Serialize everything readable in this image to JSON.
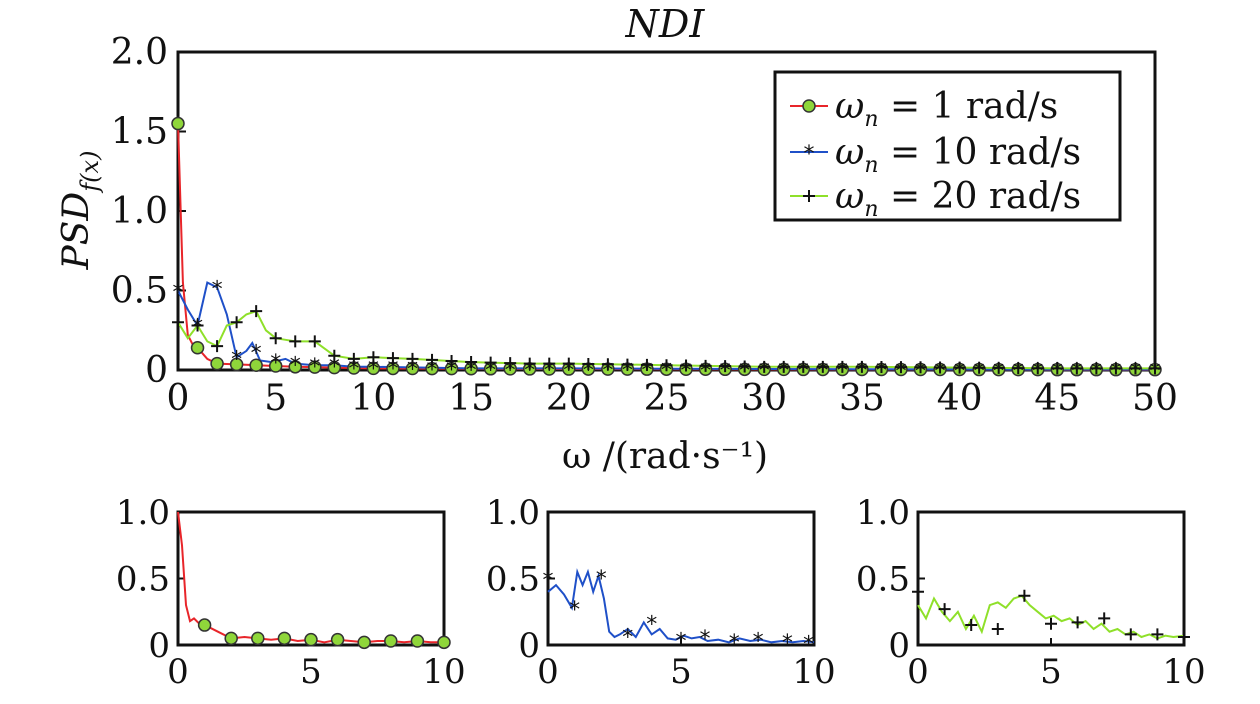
{
  "colors": {
    "series1": "#e8252a",
    "series1_marker": "#8fd63a",
    "series2": "#1f50c8",
    "series3": "#8fe02a",
    "marker_dark": "#111111"
  },
  "chart_data": [
    {
      "type": "line",
      "title": "NDI",
      "xlabel": "ω /(rad·s⁻¹)",
      "ylabel_main": "PSD",
      "ylabel_sub": "f(x)",
      "xlim": [
        0,
        50
      ],
      "ylim": [
        0,
        2.0
      ],
      "xticks": [
        "0",
        "5",
        "10",
        "15",
        "20",
        "25",
        "30",
        "35",
        "40",
        "45",
        "50"
      ],
      "yticks": [
        "0",
        "0.5",
        "1.0",
        "1.5",
        "2.0"
      ],
      "legend_position": "top-right",
      "series": [
        {
          "name_sym": "ω",
          "name_sub": "n",
          "name_rest": " = 1 rad/s",
          "marker": "circle",
          "x": [
            0,
            0.25,
            0.5,
            0.75,
            1,
            1.5,
            2,
            3,
            4,
            5,
            6,
            7,
            8,
            10,
            15,
            20,
            25,
            30,
            35,
            40,
            45,
            50
          ],
          "y": [
            1.55,
            0.55,
            0.22,
            0.16,
            0.14,
            0.07,
            0.04,
            0.035,
            0.03,
            0.025,
            0.02,
            0.018,
            0.015,
            0.01,
            0.008,
            0.006,
            0.005,
            0.004,
            0.003,
            0.003,
            0.002,
            0.002
          ]
        },
        {
          "name_sym": "ω",
          "name_sub": "n",
          "name_rest": " = 10 rad/s",
          "marker": "asterisk",
          "x": [
            0,
            0.5,
            1,
            1.5,
            2,
            2.5,
            3,
            3.5,
            3.8,
            4.2,
            4.8,
            5.5,
            6,
            7,
            8,
            9,
            10,
            15,
            20,
            25,
            30,
            35,
            40,
            45,
            50
          ],
          "y": [
            0.5,
            0.38,
            0.28,
            0.55,
            0.52,
            0.35,
            0.08,
            0.12,
            0.17,
            0.06,
            0.05,
            0.07,
            0.04,
            0.03,
            0.03,
            0.02,
            0.02,
            0.01,
            0.01,
            0.008,
            0.006,
            0.005,
            0.004,
            0.003,
            0.003
          ]
        },
        {
          "name_sym": "ω",
          "name_sub": "n",
          "name_rest": " = 20 rad/s",
          "marker": "plus",
          "x": [
            0,
            0.5,
            1,
            1.5,
            2,
            2.5,
            3,
            3.5,
            4,
            4.5,
            5,
            5.5,
            6,
            7,
            8,
            9,
            10,
            12,
            15,
            18,
            20,
            25,
            30,
            35,
            40,
            45,
            50
          ],
          "y": [
            0.3,
            0.2,
            0.28,
            0.18,
            0.15,
            0.28,
            0.3,
            0.35,
            0.37,
            0.25,
            0.2,
            0.19,
            0.18,
            0.18,
            0.09,
            0.07,
            0.08,
            0.07,
            0.05,
            0.04,
            0.04,
            0.03,
            0.02,
            0.02,
            0.015,
            0.01,
            0.01
          ]
        }
      ]
    },
    {
      "type": "line",
      "xlim": [
        0,
        10
      ],
      "ylim": [
        0,
        1.0
      ],
      "xticks": [
        "0",
        "5",
        "10"
      ],
      "yticks": [
        "0",
        "0.5",
        "1.0"
      ],
      "series": [
        {
          "marker": "circle",
          "x": [
            0,
            0.15,
            0.3,
            0.45,
            0.6,
            0.8,
            1,
            1.5,
            2,
            2.5,
            3,
            3.5,
            4,
            4.5,
            5,
            5.5,
            6,
            6.5,
            7,
            7.5,
            8,
            8.5,
            9,
            9.5,
            10
          ],
          "y": [
            1.0,
            0.75,
            0.3,
            0.18,
            0.2,
            0.16,
            0.15,
            0.1,
            0.05,
            0.06,
            0.05,
            0.04,
            0.05,
            0.03,
            0.04,
            0.02,
            0.04,
            0.03,
            0.02,
            0.03,
            0.03,
            0.02,
            0.03,
            0.02,
            0.02
          ],
          "marker_x": [
            1,
            2,
            3,
            4,
            5,
            6,
            7,
            8,
            9,
            10
          ],
          "marker_y": [
            0.15,
            0.05,
            0.05,
            0.05,
            0.04,
            0.04,
            0.02,
            0.03,
            0.03,
            0.02
          ]
        }
      ]
    },
    {
      "type": "line",
      "xlim": [
        0,
        10
      ],
      "ylim": [
        0,
        1.0
      ],
      "xticks": [
        "0",
        "5",
        "10"
      ],
      "yticks": [
        "0",
        "0.5",
        "1.0"
      ],
      "series": [
        {
          "marker": "asterisk",
          "x": [
            0,
            0.3,
            0.6,
            0.9,
            1.1,
            1.3,
            1.5,
            1.7,
            1.9,
            2.1,
            2.3,
            2.5,
            2.7,
            3,
            3.3,
            3.6,
            3.9,
            4.2,
            4.5,
            4.8,
            5.1,
            5.4,
            5.7,
            6,
            6.4,
            6.8,
            7.2,
            7.6,
            8,
            8.4,
            8.8,
            9.2,
            9.6,
            10
          ],
          "y": [
            0.4,
            0.45,
            0.38,
            0.28,
            0.55,
            0.45,
            0.55,
            0.4,
            0.52,
            0.35,
            0.1,
            0.06,
            0.08,
            0.12,
            0.06,
            0.17,
            0.08,
            0.12,
            0.05,
            0.04,
            0.07,
            0.05,
            0.06,
            0.03,
            0.04,
            0.02,
            0.05,
            0.03,
            0.04,
            0.02,
            0.03,
            0.02,
            0.03,
            0.02
          ],
          "marker_x": [
            0,
            1,
            2,
            3,
            3.9,
            5,
            5.9,
            7,
            7.9,
            9,
            9.8
          ],
          "marker_y": [
            0.5,
            0.28,
            0.51,
            0.07,
            0.17,
            0.04,
            0.06,
            0.03,
            0.04,
            0.03,
            0.02
          ]
        }
      ]
    },
    {
      "type": "line",
      "xlim": [
        0,
        10
      ],
      "ylim": [
        0,
        1.0
      ],
      "xticks": [
        "0",
        "5",
        "10"
      ],
      "yticks": [
        "0",
        "0.5",
        "1.0"
      ],
      "series": [
        {
          "marker": "plus",
          "x": [
            0,
            0.3,
            0.6,
            0.9,
            1.2,
            1.5,
            1.8,
            2.1,
            2.4,
            2.7,
            3,
            3.3,
            3.6,
            3.9,
            4.2,
            4.5,
            4.8,
            5.1,
            5.4,
            5.7,
            6,
            6.3,
            6.6,
            6.9,
            7.2,
            7.5,
            7.8,
            8.1,
            8.4,
            8.7,
            9,
            9.3,
            9.6,
            10
          ],
          "y": [
            0.3,
            0.2,
            0.35,
            0.25,
            0.18,
            0.25,
            0.12,
            0.22,
            0.1,
            0.3,
            0.32,
            0.28,
            0.35,
            0.37,
            0.3,
            0.25,
            0.2,
            0.22,
            0.18,
            0.2,
            0.15,
            0.18,
            0.12,
            0.16,
            0.1,
            0.12,
            0.08,
            0.1,
            0.06,
            0.08,
            0.05,
            0.07,
            0.06,
            0.07
          ],
          "marker_x": [
            0,
            1,
            2,
            3,
            4,
            5,
            6,
            7,
            8,
            9,
            10
          ],
          "marker_y": [
            0.4,
            0.27,
            0.15,
            0.12,
            0.37,
            0.16,
            0.17,
            0.2,
            0.08,
            0.08,
            0.06
          ]
        }
      ]
    }
  ]
}
